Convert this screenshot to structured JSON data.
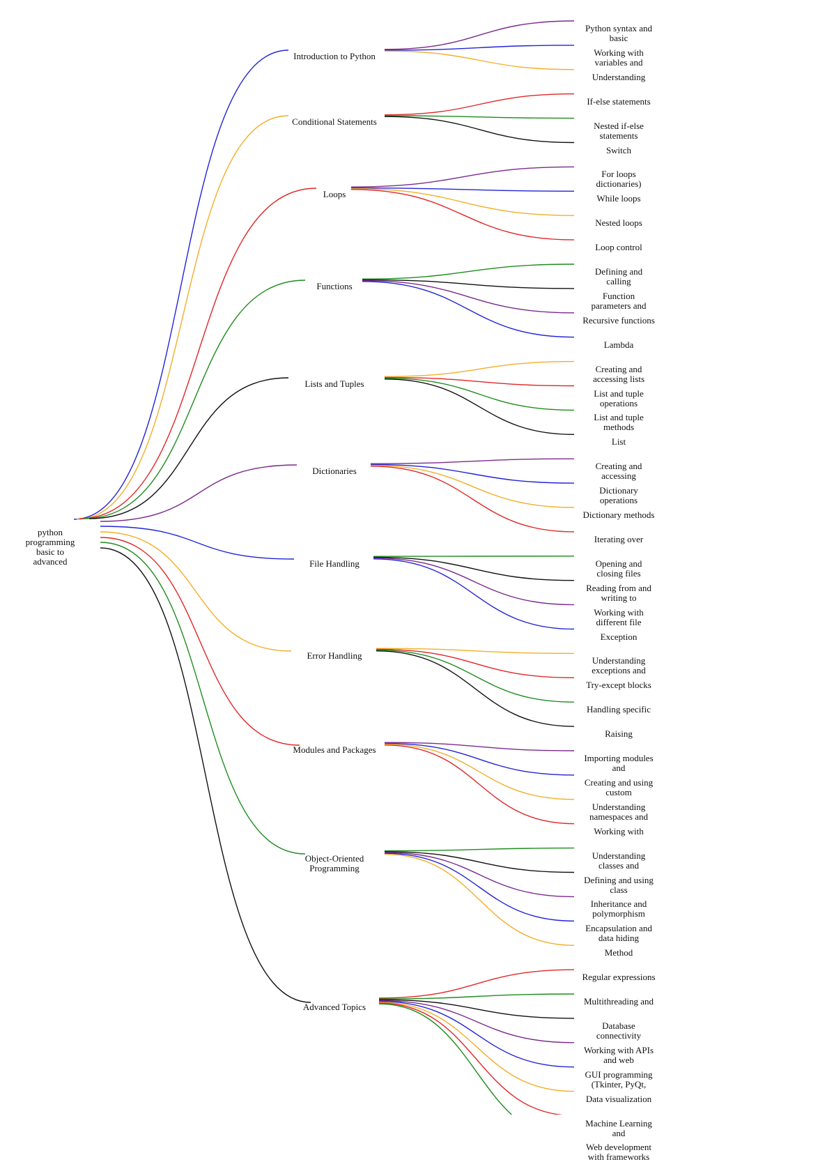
{
  "root": "python programming basic to advanced",
  "colors": {
    "blue": "#2323d6",
    "orange": "#f2ae28",
    "red": "#e02626",
    "green": "#1e8c1e",
    "black": "#111111",
    "purple": "#7b2a8c"
  },
  "topics": [
    {
      "label": "Introduction to Python",
      "color": "blue",
      "children": [
        {
          "label": "Python syntax and basic",
          "color": "purple"
        },
        {
          "label": "Working with variables and",
          "color": "blue"
        },
        {
          "label": "Understanding",
          "color": "orange"
        }
      ]
    },
    {
      "label": "Conditional Statements",
      "color": "orange",
      "children": [
        {
          "label": "If-else statements",
          "color": "red"
        },
        {
          "label": "Nested if-else statements",
          "color": "green"
        },
        {
          "label": "Switch",
          "color": "black"
        }
      ]
    },
    {
      "label": "Loops",
      "color": "red",
      "children": [
        {
          "label": "For loops dictionaries)",
          "color": "purple"
        },
        {
          "label": "While loops",
          "color": "blue"
        },
        {
          "label": "Nested loops",
          "color": "orange"
        },
        {
          "label": "Loop control",
          "color": "red"
        }
      ]
    },
    {
      "label": "Functions",
      "color": "green",
      "children": [
        {
          "label": "Defining and calling",
          "color": "green"
        },
        {
          "label": "Function parameters and",
          "color": "black"
        },
        {
          "label": "Recursive functions",
          "color": "purple"
        },
        {
          "label": "Lambda",
          "color": "blue"
        }
      ]
    },
    {
      "label": "Lists and Tuples",
      "color": "black",
      "children": [
        {
          "label": "Creating and accessing lists",
          "color": "orange"
        },
        {
          "label": "List and tuple operations",
          "color": "red"
        },
        {
          "label": "List and tuple methods",
          "color": "green"
        },
        {
          "label": "List",
          "color": "black"
        }
      ]
    },
    {
      "label": "Dictionaries",
      "color": "purple",
      "children": [
        {
          "label": "Creating and accessing",
          "color": "purple"
        },
        {
          "label": "Dictionary operations",
          "color": "blue"
        },
        {
          "label": "Dictionary methods",
          "color": "orange"
        },
        {
          "label": "Iterating over",
          "color": "red"
        }
      ]
    },
    {
      "label": "File Handling",
      "color": "blue",
      "children": [
        {
          "label": "Opening and closing files",
          "color": "green"
        },
        {
          "label": "Reading from and writing to",
          "color": "black"
        },
        {
          "label": "Working with different file",
          "color": "purple"
        },
        {
          "label": "Exception",
          "color": "blue"
        }
      ]
    },
    {
      "label": "Error Handling",
      "color": "orange",
      "children": [
        {
          "label": "Understanding exceptions and",
          "color": "orange"
        },
        {
          "label": "Try-except blocks",
          "color": "red"
        },
        {
          "label": "Handling specific",
          "color": "green"
        },
        {
          "label": "Raising",
          "color": "black"
        }
      ]
    },
    {
      "label": "Modules and Packages",
      "color": "red",
      "children": [
        {
          "label": "Importing modules and",
          "color": "purple"
        },
        {
          "label": "Creating and using custom",
          "color": "blue"
        },
        {
          "label": "Understanding namespaces and",
          "color": "orange"
        },
        {
          "label": "Working with",
          "color": "red"
        }
      ]
    },
    {
      "label": "Object-Oriented Programming",
      "color": "green",
      "children": [
        {
          "label": "Understanding classes and",
          "color": "green"
        },
        {
          "label": "Defining and using class",
          "color": "black"
        },
        {
          "label": "Inheritance and polymorphism",
          "color": "purple"
        },
        {
          "label": "Encapsulation and data hiding",
          "color": "blue"
        },
        {
          "label": "Method",
          "color": "orange"
        }
      ]
    },
    {
      "label": "Advanced Topics",
      "color": "black",
      "children": [
        {
          "label": "Regular expressions",
          "color": "red"
        },
        {
          "label": "Multithreading and",
          "color": "green"
        },
        {
          "label": "Database connectivity",
          "color": "black"
        },
        {
          "label": "Working with APIs and web",
          "color": "purple"
        },
        {
          "label": "GUI programming (Tkinter, PyQt,",
          "color": "blue"
        },
        {
          "label": "Data visualization",
          "color": "orange"
        },
        {
          "label": "Machine Learning and",
          "color": "red"
        },
        {
          "label": "Web development with frameworks (Django, Flask)",
          "color": "green"
        }
      ]
    }
  ]
}
